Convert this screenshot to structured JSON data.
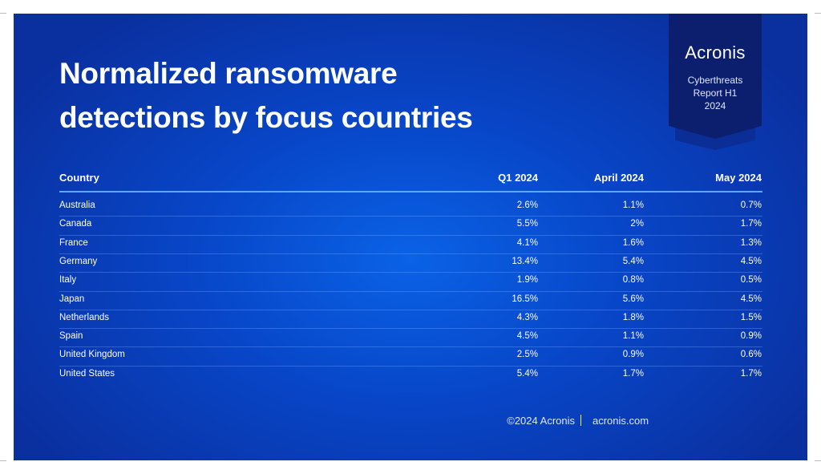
{
  "header": {
    "title_lines": [
      "Normalized ransomware",
      "detections by focus countries"
    ]
  },
  "badge": {
    "brand": "Acronis",
    "subtitle_lines": [
      "Cyberthreats",
      "Report H1",
      "2024"
    ]
  },
  "table": {
    "columns": [
      "Country",
      "Q1 2024",
      "April 2024",
      "May 2024"
    ],
    "rows": [
      [
        "Australia",
        "2.6%",
        "1.1%",
        "0.7%"
      ],
      [
        "Canada",
        "5.5%",
        "2%",
        "1.7%"
      ],
      [
        "France",
        "4.1%",
        "1.6%",
        "1.3%"
      ],
      [
        "Germany",
        "13.4%",
        "5.4%",
        "4.5%"
      ],
      [
        "Italy",
        "1.9%",
        "0.8%",
        "0.5%"
      ],
      [
        "Japan",
        "16.5%",
        "5.6%",
        "4.5%"
      ],
      [
        "Netherlands",
        "4.3%",
        "1.8%",
        "1.5%"
      ],
      [
        "Spain",
        "4.5%",
        "1.1%",
        "0.9%"
      ],
      [
        "United Kingdom",
        "2.5%",
        "0.9%",
        "0.6%"
      ],
      [
        "United States",
        "5.4%",
        "1.7%",
        "1.7%"
      ]
    ]
  },
  "footer": {
    "copyright": "©2024 Acronis",
    "website": "acronis.com"
  }
}
